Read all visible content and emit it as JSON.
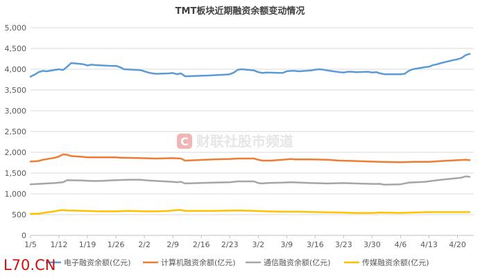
{
  "chart_data": {
    "type": "line",
    "title": "TMT板块近期融资余额变动情况",
    "ylim": [
      0,
      5000
    ],
    "y_ticks": [
      "0",
      "500",
      "1,000",
      "1,500",
      "2,000",
      "2,500",
      "3,000",
      "3,500",
      "4,000",
      "4,500",
      "5,000"
    ],
    "x_ticks": [
      "1/5",
      "1/12",
      "1/19",
      "1/26",
      "2/2",
      "2/9",
      "2/16",
      "2/23",
      "3/2",
      "3/9",
      "3/16",
      "3/23",
      "3/30",
      "4/6",
      "4/13",
      "4/20"
    ],
    "x_range": [
      "1/5",
      "4/24"
    ],
    "grid": "horizontal",
    "legend_position": "bottom",
    "series": [
      {
        "name": "电子融资余额(亿元)",
        "color": "#5b9bd5",
        "points": [
          [
            "1/5",
            3820
          ],
          [
            "1/6",
            3870
          ],
          [
            "1/7",
            3930
          ],
          [
            "1/8",
            3960
          ],
          [
            "1/9",
            3950
          ],
          [
            "1/12",
            4000
          ],
          [
            "1/13",
            3980
          ],
          [
            "1/14",
            4060
          ],
          [
            "1/15",
            4150
          ],
          [
            "1/18",
            4120
          ],
          [
            "1/19",
            4090
          ],
          [
            "1/20",
            4110
          ],
          [
            "1/21",
            4100
          ],
          [
            "1/25",
            4080
          ],
          [
            "1/26",
            4080
          ],
          [
            "1/27",
            4050
          ],
          [
            "1/28",
            4000
          ],
          [
            "2/1",
            3980
          ],
          [
            "2/2",
            3950
          ],
          [
            "2/3",
            3920
          ],
          [
            "2/4",
            3900
          ],
          [
            "2/5",
            3890
          ],
          [
            "2/8",
            3900
          ],
          [
            "2/9",
            3910
          ],
          [
            "2/10",
            3880
          ],
          [
            "2/11",
            3900
          ],
          [
            "2/12",
            3830
          ],
          [
            "2/18",
            3850
          ],
          [
            "2/22",
            3870
          ],
          [
            "2/23",
            3880
          ],
          [
            "2/24",
            3920
          ],
          [
            "2/25",
            3990
          ],
          [
            "2/26",
            4000
          ],
          [
            "3/1",
            3970
          ],
          [
            "3/2",
            3930
          ],
          [
            "3/3",
            3910
          ],
          [
            "3/4",
            3920
          ],
          [
            "3/8",
            3910
          ],
          [
            "3/9",
            3950
          ],
          [
            "3/10",
            3960
          ],
          [
            "3/11",
            3960
          ],
          [
            "3/12",
            3950
          ],
          [
            "3/15",
            3970
          ],
          [
            "3/16",
            3990
          ],
          [
            "3/17",
            4000
          ],
          [
            "3/18",
            3990
          ],
          [
            "3/19",
            3970
          ],
          [
            "3/22",
            3930
          ],
          [
            "3/23",
            3920
          ],
          [
            "3/24",
            3940
          ],
          [
            "3/25",
            3940
          ],
          [
            "3/26",
            3930
          ],
          [
            "3/29",
            3940
          ],
          [
            "3/30",
            3920
          ],
          [
            "3/31",
            3930
          ],
          [
            "4/1",
            3900
          ],
          [
            "4/2",
            3880
          ],
          [
            "4/6",
            3880
          ],
          [
            "4/7",
            3890
          ],
          [
            "4/8",
            3960
          ],
          [
            "4/9",
            4000
          ],
          [
            "4/12",
            4050
          ],
          [
            "4/13",
            4060
          ],
          [
            "4/14",
            4100
          ],
          [
            "4/15",
            4120
          ],
          [
            "4/16",
            4150
          ],
          [
            "4/19",
            4220
          ],
          [
            "4/20",
            4240
          ],
          [
            "4/21",
            4270
          ],
          [
            "4/22",
            4340
          ],
          [
            "4/23",
            4370
          ]
        ]
      },
      {
        "name": "计算机融资余额(亿元)",
        "color": "#ed7d31",
        "points": [
          [
            "1/5",
            1780
          ],
          [
            "1/7",
            1790
          ],
          [
            "1/8",
            1820
          ],
          [
            "1/11",
            1870
          ],
          [
            "1/12",
            1900
          ],
          [
            "1/13",
            1950
          ],
          [
            "1/14",
            1940
          ],
          [
            "1/15",
            1910
          ],
          [
            "1/18",
            1890
          ],
          [
            "1/19",
            1880
          ],
          [
            "1/22",
            1880
          ],
          [
            "1/26",
            1880
          ],
          [
            "1/27",
            1870
          ],
          [
            "2/1",
            1860
          ],
          [
            "2/5",
            1850
          ],
          [
            "2/9",
            1860
          ],
          [
            "2/11",
            1850
          ],
          [
            "2/12",
            1800
          ],
          [
            "2/19",
            1830
          ],
          [
            "2/23",
            1840
          ],
          [
            "2/25",
            1850
          ],
          [
            "3/1",
            1850
          ],
          [
            "3/2",
            1820
          ],
          [
            "3/3",
            1800
          ],
          [
            "3/5",
            1800
          ],
          [
            "3/8",
            1820
          ],
          [
            "3/10",
            1840
          ],
          [
            "3/11",
            1830
          ],
          [
            "3/15",
            1830
          ],
          [
            "3/19",
            1820
          ],
          [
            "3/22",
            1800
          ],
          [
            "3/26",
            1790
          ],
          [
            "3/29",
            1780
          ],
          [
            "4/1",
            1770
          ],
          [
            "4/6",
            1760
          ],
          [
            "4/9",
            1770
          ],
          [
            "4/13",
            1770
          ],
          [
            "4/16",
            1790
          ],
          [
            "4/20",
            1810
          ],
          [
            "4/22",
            1820
          ],
          [
            "4/23",
            1810
          ]
        ]
      },
      {
        "name": "通信融资余额(亿元)",
        "color": "#a5a5a5",
        "points": [
          [
            "1/5",
            1230
          ],
          [
            "1/7",
            1240
          ],
          [
            "1/11",
            1260
          ],
          [
            "1/12",
            1270
          ],
          [
            "1/13",
            1280
          ],
          [
            "1/14",
            1330
          ],
          [
            "1/18",
            1320
          ],
          [
            "1/20",
            1310
          ],
          [
            "1/22",
            1310
          ],
          [
            "1/26",
            1330
          ],
          [
            "1/29",
            1340
          ],
          [
            "2/1",
            1340
          ],
          [
            "2/3",
            1320
          ],
          [
            "2/5",
            1310
          ],
          [
            "2/9",
            1290
          ],
          [
            "2/10",
            1280
          ],
          [
            "2/11",
            1290
          ],
          [
            "2/12",
            1250
          ],
          [
            "2/19",
            1270
          ],
          [
            "2/23",
            1280
          ],
          [
            "2/25",
            1300
          ],
          [
            "3/1",
            1300
          ],
          [
            "3/2",
            1260
          ],
          [
            "3/3",
            1250
          ],
          [
            "3/4",
            1260
          ],
          [
            "3/8",
            1270
          ],
          [
            "3/10",
            1280
          ],
          [
            "3/15",
            1260
          ],
          [
            "3/19",
            1250
          ],
          [
            "3/23",
            1260
          ],
          [
            "3/26",
            1250
          ],
          [
            "3/30",
            1240
          ],
          [
            "4/1",
            1240
          ],
          [
            "4/2",
            1220
          ],
          [
            "4/6",
            1230
          ],
          [
            "4/8",
            1270
          ],
          [
            "4/12",
            1290
          ],
          [
            "4/16",
            1340
          ],
          [
            "4/20",
            1380
          ],
          [
            "4/21",
            1390
          ],
          [
            "4/22",
            1420
          ],
          [
            "4/23",
            1410
          ]
        ]
      },
      {
        "name": "传媒融资余额(亿元)",
        "color": "#ffc000",
        "points": [
          [
            "1/5",
            520
          ],
          [
            "1/7",
            520
          ],
          [
            "1/8",
            540
          ],
          [
            "1/11",
            580
          ],
          [
            "1/12",
            600
          ],
          [
            "1/13",
            610
          ],
          [
            "1/14",
            600
          ],
          [
            "1/18",
            590
          ],
          [
            "1/22",
            580
          ],
          [
            "1/26",
            580
          ],
          [
            "1/29",
            590
          ],
          [
            "2/2",
            580
          ],
          [
            "2/5",
            580
          ],
          [
            "2/8",
            590
          ],
          [
            "2/9",
            600
          ],
          [
            "2/10",
            610
          ],
          [
            "2/11",
            610
          ],
          [
            "2/12",
            590
          ],
          [
            "2/19",
            590
          ],
          [
            "2/25",
            600
          ],
          [
            "3/1",
            590
          ],
          [
            "3/4",
            580
          ],
          [
            "3/8",
            570
          ],
          [
            "3/12",
            570
          ],
          [
            "3/16",
            560
          ],
          [
            "3/22",
            550
          ],
          [
            "3/26",
            540
          ],
          [
            "3/30",
            540
          ],
          [
            "4/1",
            550
          ],
          [
            "4/6",
            540
          ],
          [
            "4/9",
            550
          ],
          [
            "4/13",
            560
          ],
          [
            "4/16",
            560
          ],
          [
            "4/20",
            560
          ],
          [
            "4/23",
            560
          ]
        ]
      }
    ]
  },
  "watermark": {
    "logo_letter": "C",
    "text": "财联社股市频道",
    "logo_color": "#f2b5b5"
  },
  "corner_label": "L70.CN"
}
